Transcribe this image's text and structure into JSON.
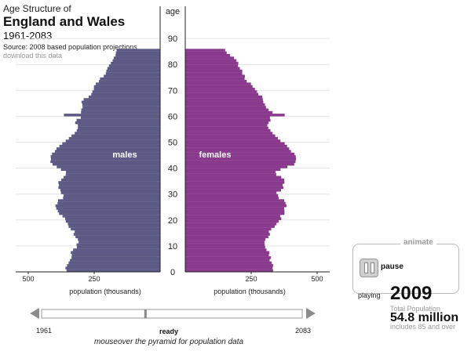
{
  "header": {
    "pre_title": "Age Structure of",
    "title": "England and Wales",
    "years": "1961-2083",
    "source": "Source: 2008 based population projections",
    "download_link": "download this data"
  },
  "chart_data": {
    "type": "population-pyramid",
    "y_axis_label": "age",
    "y_ticks": [
      0,
      10,
      20,
      30,
      40,
      50,
      60,
      70,
      80,
      90
    ],
    "ylim": [
      0,
      90
    ],
    "x_ticks": [
      500,
      250
    ],
    "xlim": [
      0,
      500
    ],
    "xlabel": "population (thousands)",
    "unit": "thousands",
    "grid": true,
    "series": [
      {
        "name": "males",
        "color": "#5e5a86",
        "ages_from": 0,
        "ages_to": 85,
        "values": [
          355,
          359,
          353,
          347,
          342,
          336,
          335,
          339,
          330,
          316,
          317,
          309,
          312,
          321,
          328,
          324,
          339,
          347,
          350,
          358,
          360,
          370,
          383,
          388,
          394,
          397,
          389,
          387,
          368,
          366,
          376,
          378,
          386,
          384,
          386,
          375,
          366,
          358,
          357,
          376,
          392,
          408,
          416,
          414,
          415,
          410,
          399,
          393,
          382,
          371,
          358,
          346,
          336,
          324,
          316,
          312,
          312,
          322,
          317,
          301,
          365,
          300,
          299,
          294,
          295,
          298,
          290,
          271,
          261,
          257,
          251,
          251,
          244,
          232,
          228,
          214,
          206,
          204,
          200,
          194,
          187,
          180,
          176,
          169,
          168,
          165
        ]
      },
      {
        "name": "females",
        "color": "#8a3a8c",
        "ages_from": 0,
        "ages_to": 85,
        "values": [
          333,
          331,
          333,
          328,
          320,
          325,
          317,
          319,
          308,
          303,
          301,
          300,
          304,
          315,
          321,
          317,
          326,
          339,
          346,
          354,
          364,
          360,
          376,
          376,
          375,
          384,
          380,
          375,
          354,
          352,
          346,
          363,
          372,
          369,
          376,
          375,
          364,
          345,
          342,
          361,
          387,
          413,
          418,
          420,
          419,
          414,
          401,
          394,
          386,
          377,
          361,
          351,
          341,
          331,
          323,
          315,
          311,
          316,
          323,
          321,
          377,
          331,
          316,
          306,
          302,
          296,
          294,
          292,
          277,
          272,
          264,
          255,
          249,
          233,
          225,
          226,
          216,
          216,
          207,
          200,
          201,
          194,
          185,
          170,
          157,
          151
        ]
      }
    ],
    "series_labels": [
      "males",
      "females"
    ]
  },
  "timeline": {
    "start_label": "1961",
    "end_label": "2083",
    "current_year": 2009,
    "min_year": 1961,
    "max_year": 2083
  },
  "controls": {
    "animate_label": "animate",
    "pause_label": "pause",
    "playing_label": "playing",
    "year_display": "2009",
    "total_label": "Total Population",
    "total_value": "54.8 million",
    "includes_note": "includes 85 and over"
  },
  "status": {
    "state": "ready",
    "instruction": "mouseover the pyramid for population data"
  },
  "colors": {
    "males": "#5e5a86",
    "females": "#8a3a8c",
    "axis": "#222222",
    "grid": "#e4e4e4"
  }
}
